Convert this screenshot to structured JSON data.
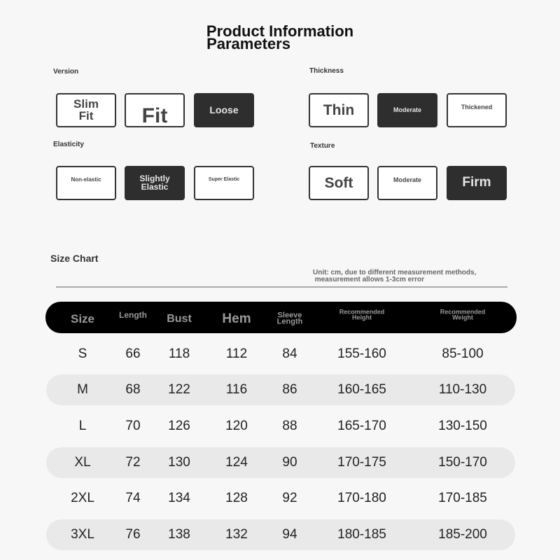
{
  "title": {
    "line1": "Product Information",
    "line2": "Parameters"
  },
  "groups": [
    {
      "label": "Version",
      "options": [
        {
          "text": "Slim\nFit",
          "selected": false
        },
        {
          "text": "Fit",
          "selected": false
        },
        {
          "text": "Loose",
          "selected": true
        }
      ]
    },
    {
      "label": "Thickness",
      "options": [
        {
          "text": "Thin",
          "selected": false
        },
        {
          "text": "Moderate",
          "selected": true
        },
        {
          "text": "Thickened",
          "selected": false
        }
      ]
    },
    {
      "label": "Elasticity",
      "options": [
        {
          "text": "Non-elastic",
          "selected": false
        },
        {
          "text": "Slightly\nElastic",
          "selected": true
        },
        {
          "text": "Super Elastic",
          "selected": false
        }
      ]
    },
    {
      "label": "Texture",
      "options": [
        {
          "text": "Soft",
          "selected": false
        },
        {
          "text": "Moderate",
          "selected": false
        },
        {
          "text": "Firm",
          "selected": true
        }
      ]
    }
  ],
  "size_chart": {
    "title": "Size Chart",
    "unit_note": "Unit: cm, due to different measurement methods,\n measurement allows 1-3cm error",
    "columns": [
      "Size",
      "Length",
      "Bust",
      "Hem",
      "Sleeve\nLength",
      "Recommended\nHeight",
      "Recommended\nWeight"
    ],
    "rows": [
      [
        "S",
        "66",
        "118",
        "112",
        "84",
        "155-160",
        "85-100"
      ],
      [
        "M",
        "68",
        "122",
        "116",
        "86",
        "160-165",
        "110-130"
      ],
      [
        "L",
        "70",
        "126",
        "120",
        "88",
        "165-170",
        "130-150"
      ],
      [
        "XL",
        "72",
        "130",
        "124",
        "90",
        "170-175",
        "150-170"
      ],
      [
        "2XL",
        "74",
        "134",
        "128",
        "92",
        "170-180",
        "170-185"
      ],
      [
        "3XL",
        "76",
        "138",
        "132",
        "94",
        "180-185",
        "185-200"
      ]
    ]
  },
  "colors": {
    "selected_fill": "#2e2e2e",
    "header_fill": "#000000",
    "stripe": "#e9e9e9"
  }
}
